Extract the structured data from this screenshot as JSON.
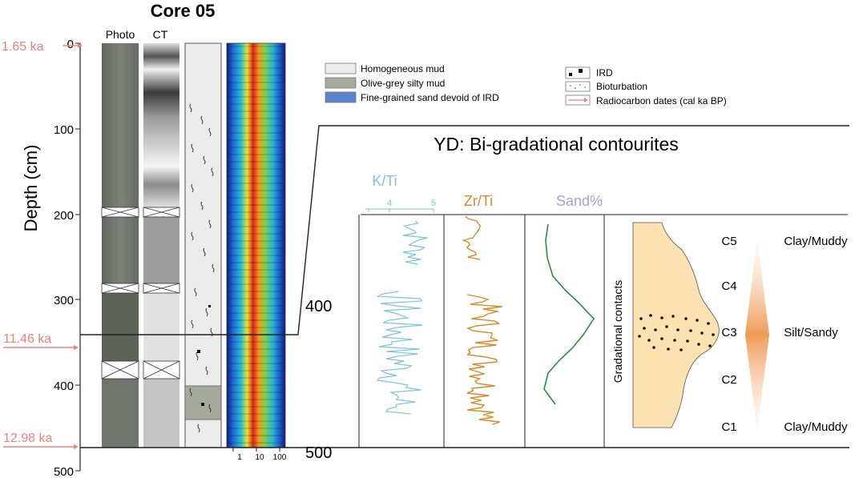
{
  "title": "Core 05",
  "column_headers": {
    "photo": "Photo",
    "ct": "CT"
  },
  "depth_axis": {
    "label": "Depth (cm)",
    "ticks": [
      "0",
      "100",
      "200",
      "300",
      "400",
      "500"
    ]
  },
  "ages": [
    "1.65 ka",
    "11.46 ka",
    "12.98 ka"
  ],
  "grain_size_ticks": [
    "1",
    "10",
    "100"
  ],
  "legend": {
    "lithology": [
      {
        "label": "Homogeneous mud",
        "color": "#ececec"
      },
      {
        "label": "Olive-grey silty mud",
        "color": "#a6a99e"
      },
      {
        "label": "Fine-grained sand devoid of IRD",
        "color": "#5b84cf"
      }
    ],
    "symbols": [
      {
        "label": "IRD",
        "icon": "ird-squares"
      },
      {
        "label": "Bioturbation",
        "icon": "bioturbation-dots"
      },
      {
        "label": "Radiocarbon dates (cal ka BP)",
        "icon": "red-arrow"
      }
    ]
  },
  "inset": {
    "title": "YD: Bi-gradational contourites",
    "depth_ticks": [
      "400",
      "500"
    ],
    "proxies": [
      {
        "name": "K/Ti",
        "color": "#7cc3e0",
        "ticks": [
          "4",
          "5"
        ]
      },
      {
        "name": "Zr/Ti",
        "color": "#d98a2b",
        "ticks": []
      },
      {
        "name": "Sand%",
        "color": "#a7a2d1",
        "ticks": []
      }
    ],
    "units": [
      "C5",
      "C4",
      "C3",
      "C2",
      "C1"
    ],
    "facies": [
      "Clay/Muddy",
      "Silt/Sandy",
      "Clay/Muddy"
    ],
    "contacts_label": "Gradational contacts",
    "sand_color": "#2e8b3e"
  }
}
